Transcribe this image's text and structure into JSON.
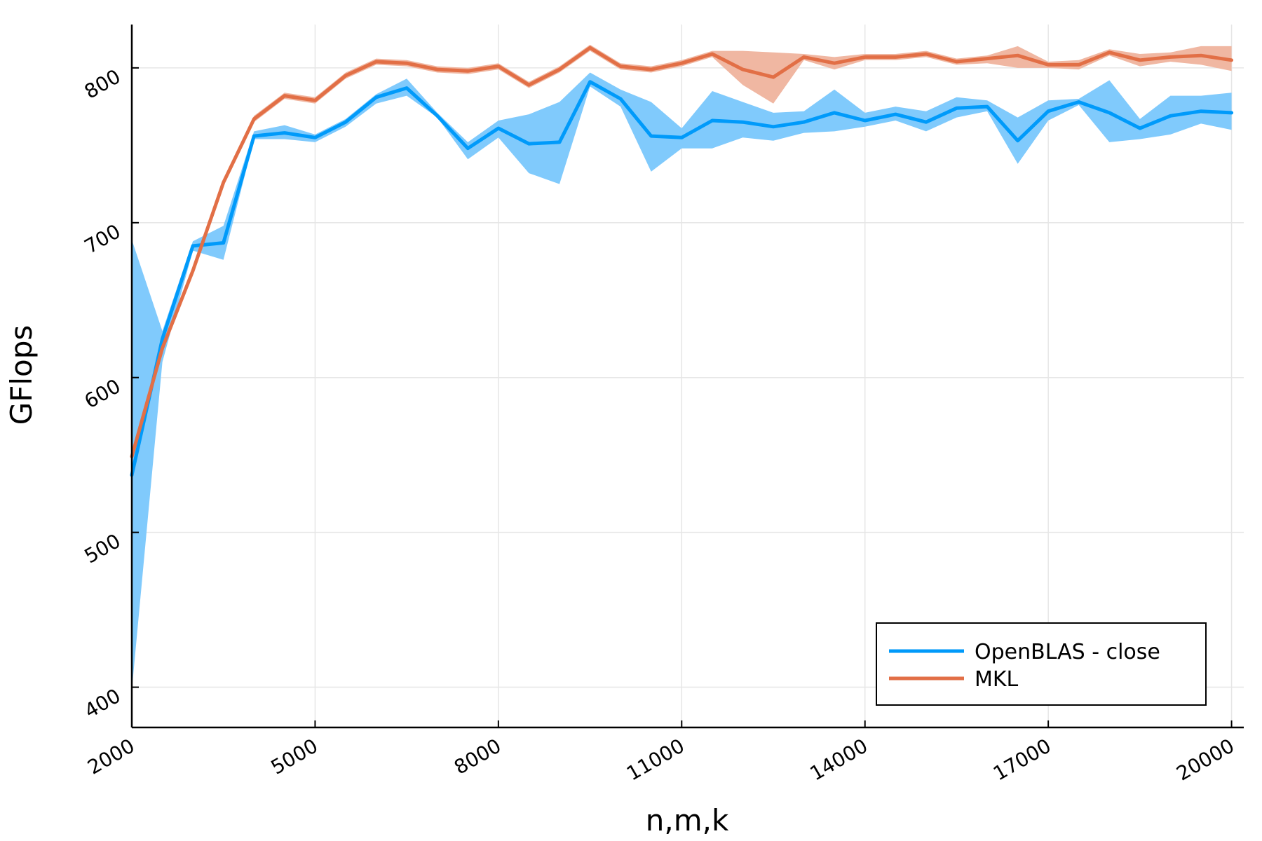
{
  "chart_data": {
    "type": "line",
    "xlabel": "n,m,k",
    "ylabel": "GFlops",
    "xlim": [
      2000,
      20200
    ],
    "ylim": [
      374,
      828
    ],
    "xticks": [
      2000,
      5000,
      8000,
      11000,
      14000,
      17000,
      20000
    ],
    "yticks": [
      400,
      500,
      600,
      700,
      800
    ],
    "x": [
      2000,
      2500,
      3000,
      3500,
      4000,
      4500,
      5000,
      5500,
      6000,
      6500,
      7000,
      7500,
      8000,
      8500,
      9000,
      9500,
      10000,
      10500,
      11000,
      11500,
      12000,
      12500,
      13000,
      13500,
      14000,
      14500,
      15000,
      15500,
      16000,
      16500,
      17000,
      17500,
      18000,
      18500,
      19000,
      19500,
      20000
    ],
    "grid": true,
    "legend_position": "bottom-right",
    "series": [
      {
        "name": "OpenBLAS - close",
        "color": "#009AFA",
        "band_color": "#80CAFC",
        "values": [
          537,
          625,
          685,
          687,
          756,
          758,
          755,
          765,
          781,
          787,
          769,
          748,
          761,
          751,
          752,
          791,
          780,
          756,
          755,
          766,
          765,
          762,
          765,
          771,
          766,
          770,
          765,
          774,
          775,
          753,
          772,
          778,
          771,
          761,
          769,
          772,
          771
        ],
        "lower": [
          398,
          610,
          682,
          676,
          754,
          754,
          752,
          762,
          777,
          782,
          768,
          741,
          755,
          732,
          725,
          788,
          775,
          733,
          748,
          748,
          755,
          753,
          758,
          759,
          762,
          766,
          759,
          768,
          772,
          738,
          766,
          776,
          752,
          754,
          757,
          764,
          760
        ],
        "upper": [
          689,
          630,
          688,
          698,
          759,
          763,
          757,
          767,
          783,
          793,
          771,
          752,
          766,
          770,
          778,
          797,
          786,
          778,
          761,
          785,
          778,
          771,
          772,
          786,
          771,
          775,
          772,
          781,
          779,
          768,
          779,
          780,
          792,
          767,
          782,
          782,
          784
        ]
      },
      {
        "name": "MKL",
        "color": "#E26F46",
        "band_color": "#F0B7A2",
        "values": [
          549,
          619,
          669,
          726,
          767,
          782,
          779,
          795,
          804,
          803,
          799,
          798,
          801,
          789,
          799,
          813,
          801,
          799,
          803,
          809,
          799,
          794,
          807,
          803,
          807,
          807,
          809,
          804,
          806,
          808,
          802,
          802,
          810,
          805,
          807,
          808,
          805
        ],
        "lower": [
          547,
          617,
          667,
          724,
          765,
          780,
          777,
          793,
          802,
          801,
          797,
          796,
          799,
          787,
          797,
          811,
          799,
          797,
          801,
          807,
          789,
          777,
          805,
          799,
          805,
          805,
          807,
          802,
          803,
          800,
          800,
          799,
          808,
          801,
          804,
          802,
          798
        ],
        "upper": [
          551,
          621,
          671,
          728,
          769,
          784,
          781,
          797,
          806,
          805,
          801,
          800,
          803,
          791,
          801,
          815,
          803,
          801,
          805,
          811,
          811,
          810,
          809,
          807,
          809,
          809,
          811,
          806,
          808,
          814,
          804,
          805,
          812,
          809,
          810,
          814,
          814
        ]
      }
    ]
  }
}
